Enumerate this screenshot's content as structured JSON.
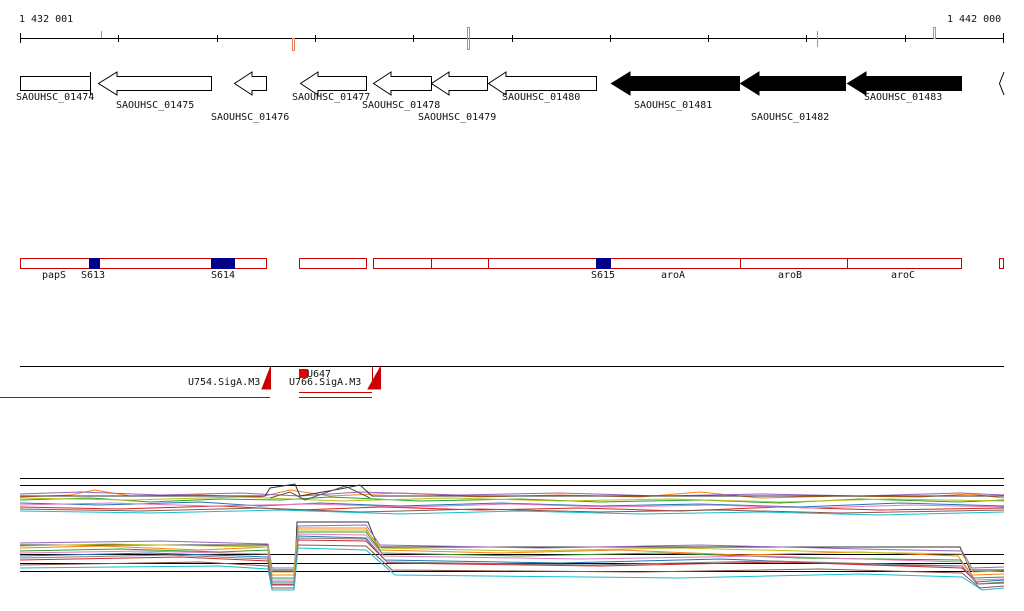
{
  "ruler": {
    "start_label": "1 432 001",
    "end_label": "1 442 000"
  },
  "genes": [
    {
      "name": "SAOUHSC_01474",
      "strand": "reverse",
      "filled": false
    },
    {
      "name": "SAOUHSC_01475",
      "strand": "reverse",
      "filled": false
    },
    {
      "name": "SAOUHSC_01476",
      "strand": "reverse",
      "filled": false
    },
    {
      "name": "SAOUHSC_01477",
      "strand": "reverse",
      "filled": false
    },
    {
      "name": "SAOUHSC_01478",
      "strand": "reverse",
      "filled": false
    },
    {
      "name": "SAOUHSC_01479",
      "strand": "reverse",
      "filled": false
    },
    {
      "name": "SAOUHSC_01480",
      "strand": "reverse",
      "filled": false
    },
    {
      "name": "SAOUHSC_01481",
      "strand": "reverse",
      "filled": true
    },
    {
      "name": "SAOUHSC_01482",
      "strand": "reverse",
      "filled": true
    },
    {
      "name": "SAOUHSC_01483",
      "strand": "reverse",
      "filled": true
    }
  ],
  "annotation_track": {
    "labels": [
      "papS",
      "S613",
      "S614",
      "S615",
      "aroA",
      "aroB",
      "aroC"
    ]
  },
  "transcript_track": {
    "labels": [
      "U754.SigA.M3",
      "U766.SigA.M3",
      "U647"
    ]
  },
  "colors": {
    "gene_outline": "#000000",
    "feature_box": "#cc0000",
    "site_fill": "#00008b",
    "ruler_marker": "#e08060",
    "transcript": "#cc0000"
  }
}
